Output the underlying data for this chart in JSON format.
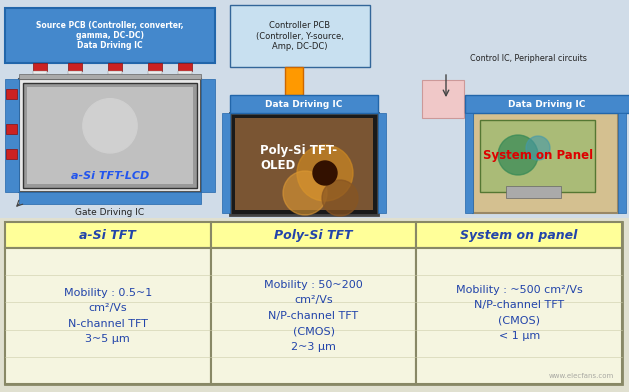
{
  "bg_color": "#d8d8d8",
  "top_bg": "#d0dce8",
  "table_header_color": "#ffff99",
  "table_body_color": "#f0f0c8",
  "table_border_color": "#999900",
  "blue_box_color": "#4488cc",
  "light_blue_pcb": "#c8e0f0",
  "orange_box": "#ff9900",
  "pink_box": "#f0c8c8",
  "text_blue": "#2244aa",
  "text_dark": "#222222",
  "text_white": "#ffffff",
  "text_red": "#dd0000",
  "header_texts": [
    "a-Si TFT",
    "Poly-Si TFT",
    "System on panel"
  ],
  "col1_lines": [
    "Mobility : 0.5~1",
    "cm²/Vs",
    "N-channel TFT",
    "3~5 μm"
  ],
  "col2_lines": [
    "Mobility : 50~200",
    "cm²/Vs",
    "N/P-channel TFT",
    "(CMOS)",
    "2~3 μm"
  ],
  "col3_lines": [
    "Mobility : ~500 cm²/Vs",
    "N/P-channel TFT",
    "(CMOS)",
    "< 1 μm"
  ],
  "label_asi": "a-Si TFT-LCD",
  "label_gate": "Gate Driving IC",
  "label_polysi": "Poly-Si TFT-\nOLED",
  "label_sop": "System on Panel",
  "label_source_pcb": "Source PCB (Controller, converter,\ngamma, DC-DC)\nData Driving IC",
  "label_controller_pcb": "Controller PCB\n(Controller, Y-source,\nAmp, DC-DC)",
  "label_data_driving": "Data Driving IC",
  "label_data_driving2": "Data Driving IC",
  "label_control_ic": "Control IC, Peripheral circuits"
}
